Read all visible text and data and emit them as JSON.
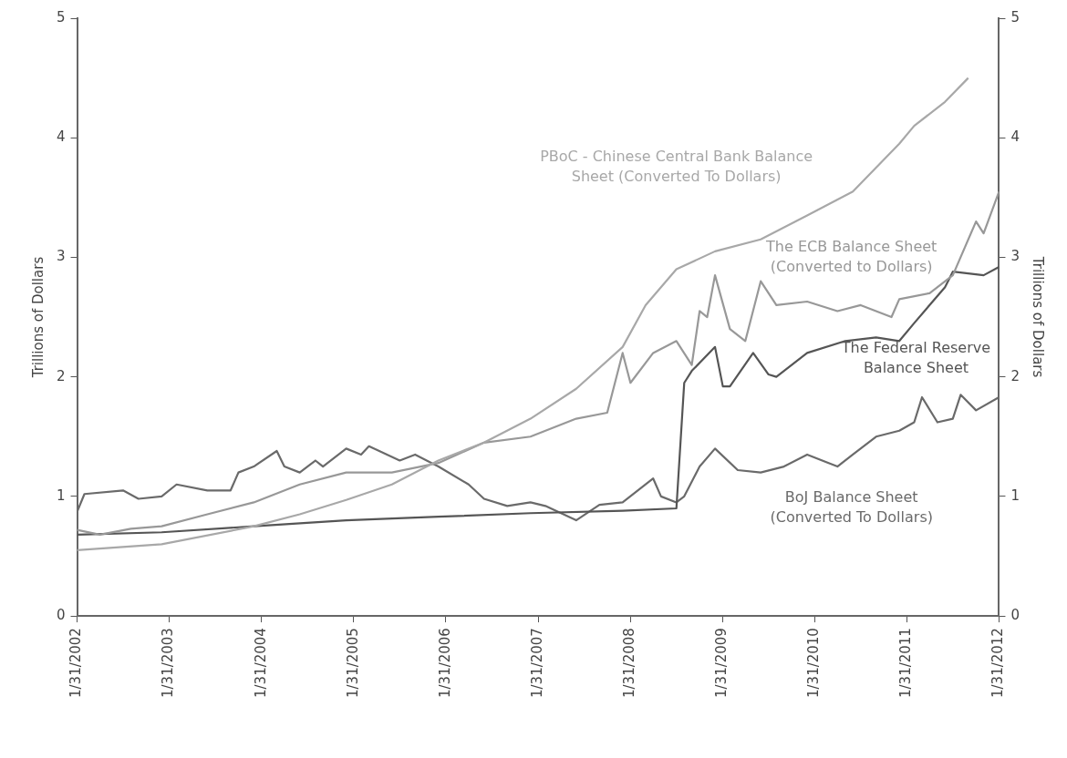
{
  "chart_data": {
    "type": "line",
    "ylabel": "Trillions of Dollars",
    "y2label": "Trillions of Dollars",
    "xlim": [
      "2002-01-31",
      "2012-01-31"
    ],
    "xticks": [
      {
        "value": "2002-01-31",
        "label": "1/31/2002"
      },
      {
        "value": "2003-01-31",
        "label": "1/31/2003"
      },
      {
        "value": "2004-01-31",
        "label": "1/31/2004"
      },
      {
        "value": "2005-01-31",
        "label": "1/31/2005"
      },
      {
        "value": "2006-01-31",
        "label": "1/31/2006"
      },
      {
        "value": "2007-01-31",
        "label": "1/31/2007"
      },
      {
        "value": "2008-01-31",
        "label": "1/31/2008"
      },
      {
        "value": "2009-01-31",
        "label": "1/31/2009"
      },
      {
        "value": "2010-01-31",
        "label": "1/31/2010"
      },
      {
        "value": "2011-01-31",
        "label": "1/31/2011"
      },
      {
        "value": "2012-01-31",
        "label": "1/31/2012"
      }
    ],
    "ylim": [
      0,
      5
    ],
    "yticks": [
      0,
      1,
      2,
      3,
      4,
      5
    ],
    "y2lim": [
      0,
      5
    ],
    "y2ticks": [
      0,
      1,
      2,
      3,
      4,
      5
    ],
    "grid": false,
    "legend": false,
    "marker": "none",
    "line_style": "solid",
    "series": [
      {
        "name": "PBoC - Chinese Central Bank Balance Sheet (Converted To Dollars)",
        "color": "#a8a8a8",
        "x": [
          "2002-01-31",
          "2003-01",
          "2004-01",
          "2004-07",
          "2005-01",
          "2005-07",
          "2006-01",
          "2006-07",
          "2007-01",
          "2007-07",
          "2008-01",
          "2008-04",
          "2008-08",
          "2009-01",
          "2009-07",
          "2010-01",
          "2010-07",
          "2010-10",
          "2011-01",
          "2011-03",
          "2011-07",
          "2011-10"
        ],
        "values": [
          0.55,
          0.6,
          0.75,
          0.85,
          0.97,
          1.1,
          1.3,
          1.45,
          1.65,
          1.9,
          2.25,
          2.6,
          2.9,
          3.05,
          3.15,
          3.35,
          3.55,
          3.75,
          3.95,
          4.1,
          4.3,
          4.5
        ]
      },
      {
        "name": "The ECB Balance Sheet (Converted to Dollars)",
        "color": "#989898",
        "x": [
          "2002-01-31",
          "2002-05",
          "2002-09",
          "2003-01",
          "2003-07",
          "2004-01",
          "2004-07",
          "2005-01",
          "2005-07",
          "2006-01",
          "2006-07",
          "2007-01",
          "2007-07",
          "2007-11",
          "2008-01",
          "2008-02",
          "2008-05",
          "2008-08",
          "2008-10",
          "2008-11",
          "2008-12",
          "2009-01",
          "2009-03",
          "2009-05",
          "2009-07",
          "2009-09",
          "2010-01",
          "2010-05",
          "2010-08",
          "2010-12",
          "2011-01",
          "2011-05",
          "2011-08",
          "2011-11",
          "2011-12",
          "2012-01-31"
        ],
        "values": [
          0.72,
          0.68,
          0.73,
          0.75,
          0.85,
          0.95,
          1.1,
          1.2,
          1.2,
          1.28,
          1.45,
          1.5,
          1.65,
          1.7,
          2.2,
          1.95,
          2.2,
          2.3,
          2.1,
          2.55,
          2.5,
          2.85,
          2.4,
          2.3,
          2.8,
          2.6,
          2.63,
          2.55,
          2.6,
          2.5,
          2.65,
          2.7,
          2.85,
          3.3,
          3.2,
          3.55
        ]
      },
      {
        "name": "The Federal Reserve Balance Sheet",
        "color": "#555555",
        "x": [
          "2002-01-31",
          "2003-01",
          "2004-01",
          "2005-01",
          "2006-01",
          "2007-01",
          "2008-01",
          "2008-08",
          "2008-09",
          "2008-10",
          "2009-01",
          "2009-02",
          "2009-03",
          "2009-06",
          "2009-08",
          "2009-09",
          "2010-01",
          "2010-06",
          "2010-10",
          "2011-01",
          "2011-03",
          "2011-07",
          "2011-08",
          "2011-12",
          "2012-01-31"
        ],
        "values": [
          0.68,
          0.7,
          0.75,
          0.8,
          0.83,
          0.86,
          0.88,
          0.9,
          1.95,
          2.05,
          2.25,
          1.92,
          1.92,
          2.2,
          2.02,
          2.0,
          2.2,
          2.3,
          2.33,
          2.3,
          2.45,
          2.75,
          2.88,
          2.85,
          2.92
        ]
      },
      {
        "name": "BoJ Balance Sheet (Converted To Dollars)",
        "color": "#6a6a6a",
        "x": [
          "2002-01-31",
          "2002-03",
          "2002-08",
          "2002-10",
          "2003-01",
          "2003-03",
          "2003-07",
          "2003-10",
          "2003-11",
          "2004-01",
          "2004-04",
          "2004-05",
          "2004-07",
          "2004-09",
          "2004-10",
          "2005-01",
          "2005-03",
          "2005-04",
          "2005-08",
          "2005-10",
          "2006-01",
          "2006-05",
          "2006-07",
          "2006-10",
          "2007-01",
          "2007-03",
          "2007-07",
          "2007-10",
          "2008-01",
          "2008-05",
          "2008-06",
          "2008-08",
          "2008-09",
          "2008-11",
          "2009-01",
          "2009-04",
          "2009-07",
          "2009-10",
          "2010-01",
          "2010-05",
          "2010-07",
          "2010-10",
          "2011-01",
          "2011-03",
          "2011-04",
          "2011-06",
          "2011-08",
          "2011-09",
          "2011-11",
          "2012-01-31"
        ],
        "values": [
          0.87,
          1.02,
          1.05,
          0.98,
          1.0,
          1.1,
          1.05,
          1.05,
          1.2,
          1.25,
          1.38,
          1.25,
          1.2,
          1.3,
          1.25,
          1.4,
          1.35,
          1.42,
          1.3,
          1.35,
          1.25,
          1.1,
          0.98,
          0.92,
          0.95,
          0.92,
          0.8,
          0.93,
          0.95,
          1.15,
          1.0,
          0.95,
          1.0,
          1.25,
          1.4,
          1.22,
          1.2,
          1.25,
          1.35,
          1.25,
          1.35,
          1.5,
          1.55,
          1.62,
          1.83,
          1.62,
          1.65,
          1.85,
          1.72,
          1.83
        ]
      }
    ]
  }
}
